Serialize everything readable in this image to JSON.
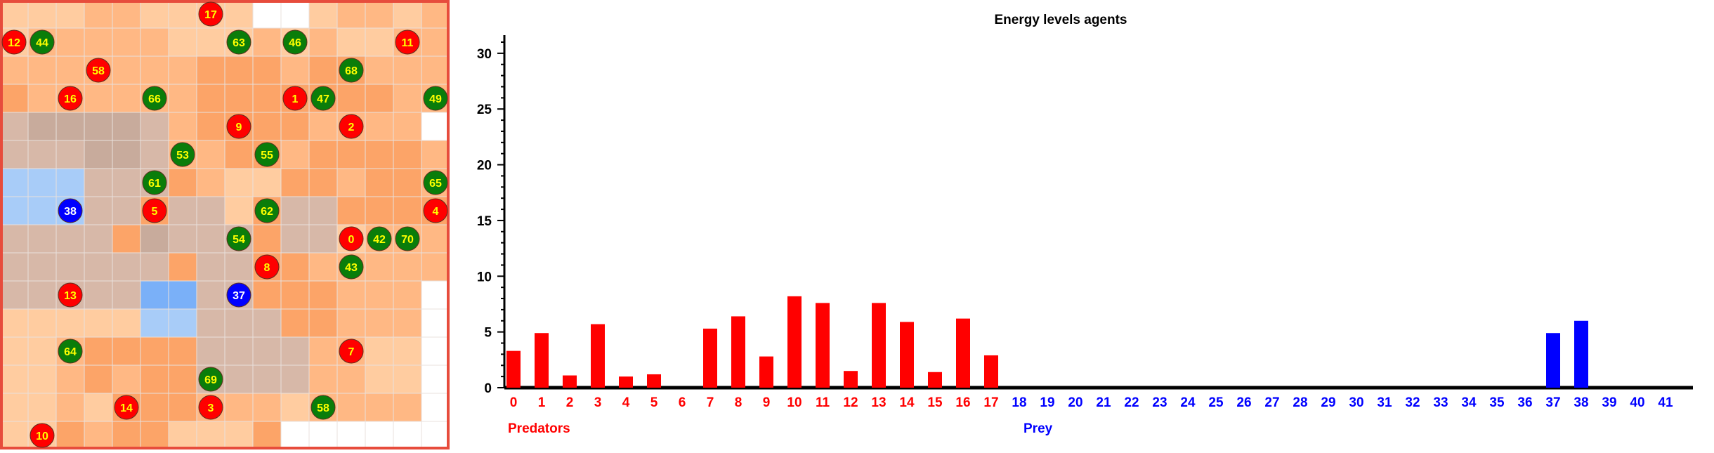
{
  "grid": {
    "rows": 16,
    "cols": 16,
    "border_color": "#e74c3c",
    "palette": {
      "W": "#ffffff",
      "l": "#ffcca0",
      "m": "#ffb884",
      "o": "#fca468",
      "d": "#f79a55",
      "g": "#d7b8a8",
      "G": "#c8ab9c",
      "b": "#a8ccf8",
      "B": "#7ab0f8",
      "x": "#b8a8b0"
    },
    "cells": [
      "lllmmllllWWlmmlm",
      "lmmmmmlllmlmllmm",
      "mmmmmmmooomoommm",
      "ommmmmmooooooomm",
      "gGGGGgmoooommmmW",
      "gggGGgmmoomoooom",
      "bbbgggomlloomoom",
      "bbbggoggloggoooo",
      "ggggoGgggogglmmm",
      "ggggggoggoommmmm",
      "gggggBBggooommmW",
      "lllllbbgggoommmW",
      "llmooooggggmmllW",
      "llmomooggggmmllW",
      "llmlooommmlmmmmW",
      "llomoollloWWWWWW"
    ]
  },
  "agents": [
    {
      "id": "17",
      "type": "predator",
      "row": 0,
      "col": 7
    },
    {
      "id": "12",
      "type": "predator",
      "row": 1,
      "col": 0
    },
    {
      "id": "44",
      "type": "prey",
      "row": 1,
      "col": 1
    },
    {
      "id": "63",
      "type": "prey",
      "row": 1,
      "col": 8
    },
    {
      "id": "46",
      "type": "prey",
      "row": 1,
      "col": 10
    },
    {
      "id": "11",
      "type": "predator",
      "row": 1,
      "col": 14
    },
    {
      "id": "58",
      "type": "predator",
      "row": 2,
      "col": 3
    },
    {
      "id": "68",
      "type": "prey",
      "row": 2,
      "col": 12
    },
    {
      "id": "16",
      "type": "predator",
      "row": 3,
      "col": 2
    },
    {
      "id": "66",
      "type": "prey",
      "row": 3,
      "col": 5
    },
    {
      "id": "1",
      "type": "predator",
      "row": 3,
      "col": 10
    },
    {
      "id": "47",
      "type": "prey",
      "row": 3,
      "col": 11
    },
    {
      "id": "49",
      "type": "prey",
      "row": 3,
      "col": 15
    },
    {
      "id": "9",
      "type": "predator",
      "row": 4,
      "col": 8
    },
    {
      "id": "2",
      "type": "predator",
      "row": 4,
      "col": 12
    },
    {
      "id": "53",
      "type": "prey",
      "row": 5,
      "col": 6
    },
    {
      "id": "55",
      "type": "prey",
      "row": 5,
      "col": 9
    },
    {
      "id": "61",
      "type": "prey",
      "row": 6,
      "col": 5
    },
    {
      "id": "65",
      "type": "prey",
      "row": 6,
      "col": 15
    },
    {
      "id": "38",
      "type": "prey-energy",
      "row": 7,
      "col": 2
    },
    {
      "id": "5",
      "type": "predator",
      "row": 7,
      "col": 5
    },
    {
      "id": "62",
      "type": "prey",
      "row": 7,
      "col": 9
    },
    {
      "id": "4",
      "type": "predator",
      "row": 7,
      "col": 15
    },
    {
      "id": "54",
      "type": "prey",
      "row": 8,
      "col": 8
    },
    {
      "id": "0",
      "type": "predator",
      "row": 8,
      "col": 12
    },
    {
      "id": "42",
      "type": "prey",
      "row": 8,
      "col": 13
    },
    {
      "id": "70",
      "type": "prey",
      "row": 8,
      "col": 14
    },
    {
      "id": "8",
      "type": "predator",
      "row": 9,
      "col": 9
    },
    {
      "id": "43",
      "type": "prey",
      "row": 9,
      "col": 12
    },
    {
      "id": "13",
      "type": "predator",
      "row": 10,
      "col": 2
    },
    {
      "id": "37",
      "type": "prey-energy",
      "row": 10,
      "col": 8
    },
    {
      "id": "64",
      "type": "prey",
      "row": 12,
      "col": 2
    },
    {
      "id": "7",
      "type": "predator",
      "row": 12,
      "col": 12
    },
    {
      "id": "69",
      "type": "prey",
      "row": 13,
      "col": 7
    },
    {
      "id": "14",
      "type": "predator",
      "row": 14,
      "col": 4
    },
    {
      "id": "3",
      "type": "predator",
      "row": 14,
      "col": 7
    },
    {
      "id": "58",
      "type": "prey",
      "row": 14,
      "col": 11
    },
    {
      "id": "10",
      "type": "predator",
      "row": 15,
      "col": 1
    }
  ],
  "colors": {
    "predator": "#ff0000",
    "prey": "#0a7d0a",
    "prey-energy": "#0000ff",
    "predator_label": "#ffff00",
    "prey_label": "#ffff00",
    "prey-energy_label": "#ffffff",
    "axis": "#000000"
  },
  "chart_data": {
    "type": "bar",
    "title": "Energy levels agents",
    "x": [
      "0",
      "1",
      "2",
      "3",
      "4",
      "5",
      "6",
      "7",
      "8",
      "9",
      "10",
      "11",
      "12",
      "13",
      "14",
      "15",
      "16",
      "17",
      "18",
      "19",
      "20",
      "21",
      "22",
      "23",
      "24",
      "25",
      "26",
      "27",
      "28",
      "29",
      "30",
      "31",
      "32",
      "33",
      "34",
      "35",
      "36",
      "37",
      "38",
      "39",
      "40",
      "41"
    ],
    "values": [
      3.3,
      4.9,
      1.1,
      5.7,
      1.0,
      1.2,
      0,
      5.3,
      6.4,
      2.8,
      8.2,
      7.6,
      1.5,
      7.6,
      5.9,
      1.4,
      6.2,
      2.9,
      0,
      0,
      0,
      0,
      0,
      0,
      0,
      0,
      0,
      0,
      0,
      0,
      0,
      0,
      0,
      0,
      0,
      0,
      0,
      4.9,
      6.0,
      0,
      0,
      0
    ],
    "groups": [
      {
        "name": "Predators",
        "from": 0,
        "to": 17,
        "color": "#ff0000"
      },
      {
        "name": "Prey",
        "from": 18,
        "to": 41,
        "color": "#0000ff"
      }
    ],
    "ylim": [
      0,
      31
    ],
    "yticks": [
      "0",
      "5",
      "10",
      "15",
      "20",
      "25",
      "30"
    ],
    "xlabel": "",
    "ylabel": "",
    "grid": false
  }
}
